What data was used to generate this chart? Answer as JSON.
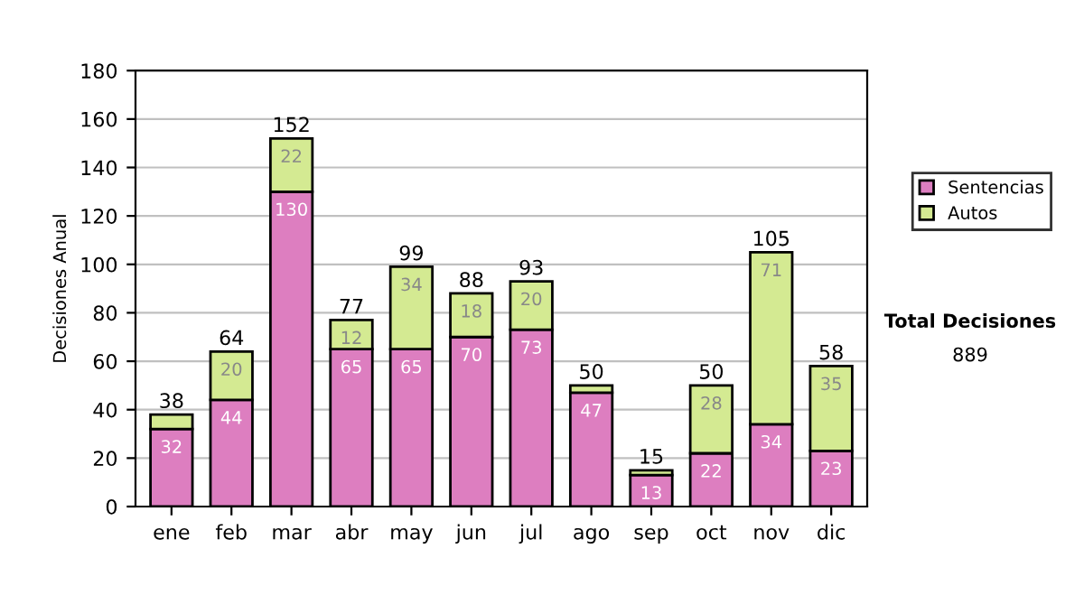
{
  "chart_data": {
    "type": "bar",
    "stacked": true,
    "ylabel": "Decisiones Anual",
    "categories": [
      "ene",
      "feb",
      "mar",
      "abr",
      "may",
      "jun",
      "jul",
      "ago",
      "sep",
      "oct",
      "nov",
      "dic"
    ],
    "series": [
      {
        "name": "Sentencias",
        "color": "#dd7ec0",
        "values": [
          32,
          44,
          130,
          65,
          65,
          70,
          73,
          47,
          13,
          22,
          34,
          23
        ],
        "value_labels": [
          "32",
          "44",
          "130",
          "65",
          "65",
          "70",
          "73",
          "47",
          "13",
          "22",
          "34",
          "23"
        ]
      },
      {
        "name": "Autos",
        "color": "#d4ea92",
        "values": [
          6,
          20,
          22,
          12,
          34,
          18,
          20,
          3,
          2,
          28,
          71,
          35
        ],
        "value_labels": [
          null,
          "20",
          "22",
          "12",
          "34",
          "18",
          "20",
          null,
          null,
          "28",
          "71",
          "35"
        ]
      }
    ],
    "totals": [
      "38",
      "64",
      "152",
      "77",
      "99",
      "88",
      "93",
      "50",
      "15",
      "50",
      "105",
      "58"
    ],
    "ylim": [
      0,
      180
    ],
    "yticks": [
      0,
      20,
      40,
      60,
      80,
      100,
      120,
      140,
      160,
      180
    ],
    "grid": "y",
    "legend": "right",
    "annotations": [
      "Total Decisiones",
      "889"
    ]
  }
}
